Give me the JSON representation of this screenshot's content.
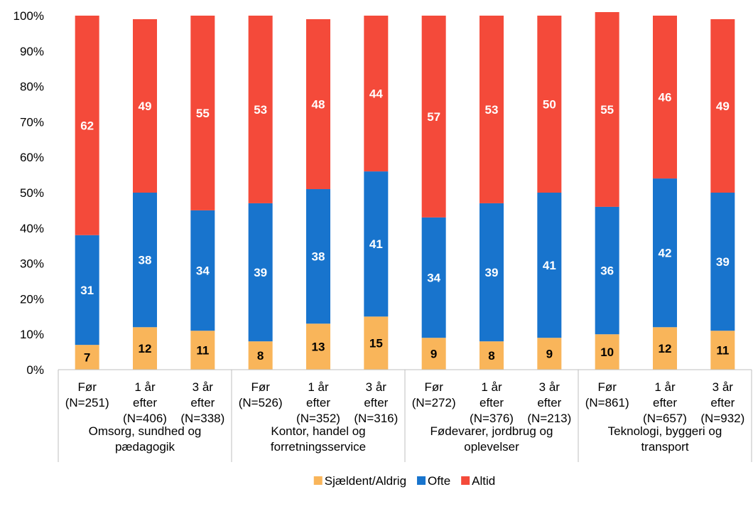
{
  "chart_data": {
    "type": "stacked_bar",
    "categories": [
      "Før\n(N=251)",
      "1 år\nefter\n(N=406)",
      "3 år\nefter\n(N=338)",
      "Før\n(N=526)",
      "1 år\nefter\n(N=352)",
      "3 år\nefter\n(N=316)",
      "Før\n(N=272)",
      "1 år\nefter\n(N=376)",
      "3 år\nefter\n(N=213)",
      "Før\n(N=861)",
      "1 år\nefter\n(N=657)",
      "3 år\nefter\n(N=932)"
    ],
    "groups": [
      "Omsorg, sundhed og\npædagogik",
      "Kontor, handel og\nforretningsservice",
      "Fødevarer, jordbrug og\noplevelser",
      "Teknologi, byggeri og\ntransport"
    ],
    "series": [
      {
        "name": "Sjældent/Aldrig",
        "color": "#F9B55A",
        "label_color": "#000000",
        "values": [
          7,
          12,
          11,
          8,
          13,
          15,
          9,
          8,
          9,
          10,
          12,
          11
        ]
      },
      {
        "name": "Ofte",
        "color": "#1874CD",
        "label_color": "#FFFFFF",
        "values": [
          31,
          38,
          34,
          39,
          38,
          41,
          34,
          39,
          41,
          36,
          42,
          39
        ]
      },
      {
        "name": "Altid",
        "color": "#F44A3A",
        "label_color": "#FFFFFF",
        "values": [
          62,
          49,
          55,
          53,
          48,
          44,
          57,
          53,
          50,
          55,
          46,
          49
        ]
      }
    ],
    "ylim": [
      0,
      100
    ],
    "yticks": [
      {
        "value": 0,
        "label": "0%"
      },
      {
        "value": 10,
        "label": "10%"
      },
      {
        "value": 20,
        "label": "20%"
      },
      {
        "value": 30,
        "label": "30%"
      },
      {
        "value": 40,
        "label": "40%"
      },
      {
        "value": 50,
        "label": "50%"
      },
      {
        "value": 60,
        "label": "60%"
      },
      {
        "value": 70,
        "label": "70%"
      },
      {
        "value": 80,
        "label": "80%"
      },
      {
        "value": 90,
        "label": "90%"
      },
      {
        "value": 100,
        "label": "100%"
      }
    ],
    "grid": false,
    "legend": "bottom"
  }
}
